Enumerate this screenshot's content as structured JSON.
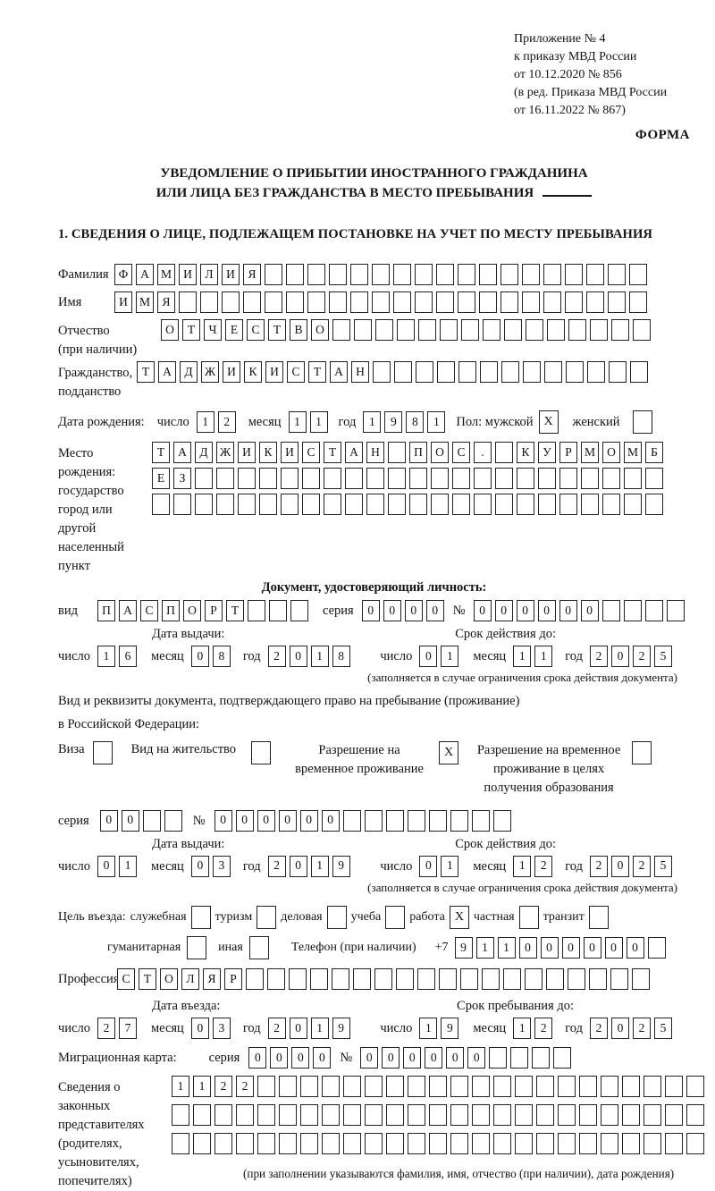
{
  "doc": {
    "annex_lines": [
      "Приложение № 4",
      "к приказу МВД России",
      "от 10.12.2020 № 856",
      "(в ред. Приказа МВД России",
      "от 16.11.2022 № 867)"
    ],
    "forma": "ФОРМА",
    "title1": "УВЕДОМЛЕНИЕ О ПРИБЫТИИ ИНОСТРАННОГО ГРАЖДАНИНА",
    "title2": "ИЛИ ЛИЦА БЕЗ ГРАЖДАНСТВА В МЕСТО ПРЕБЫВАНИЯ",
    "section1": "1. СВЕДЕНИЯ О ЛИЦЕ, ПОДЛЕЖАЩЕМ ПОСТАНОВКЕ НА УЧЕТ ПО МЕСТУ ПРЕБЫВАНИЯ"
  },
  "labels": {
    "day": "число",
    "month": "месяц",
    "year": "год",
    "issue": "Дата выдачи:",
    "valid": "Срок действия до:",
    "valid_note": "(заполняется в случае ограничения срока действия документа)",
    "seriya": "серия",
    "num": "№"
  },
  "surname": {
    "label": "Фамилия",
    "row": {
      "v": "ФАМИЛИЯ",
      "n": 25
    }
  },
  "name": {
    "label": "Имя",
    "row": {
      "v": "ИМЯ",
      "n": 25
    }
  },
  "patronymic": {
    "label1": "Отчество",
    "label2": "(при наличии)",
    "row": {
      "v": "ОТЧЕСТВО",
      "n": 23
    }
  },
  "citizenship": {
    "label1": "Гражданство,",
    "label2": "подданство",
    "row": {
      "v": "ТАДЖИКИСТАН",
      "n": 24
    }
  },
  "birth": {
    "label": "Дата рождения:",
    "day": {
      "v": "12",
      "n": 2
    },
    "month": {
      "v": "11",
      "n": 2
    },
    "year": {
      "v": "1981",
      "n": 4
    },
    "gender_label": "Пол: мужской",
    "male": "X",
    "female_label": "женский",
    "female": ""
  },
  "birthplace": {
    "label1": "Место рождения:",
    "label2": "государство",
    "label3": "город или другой",
    "label4": "населенный пункт",
    "rows": [
      {
        "v": "ТАДЖИКИСТАН ПОС. КУРМОМБ",
        "n": 24
      },
      {
        "v": "ЕЗ",
        "n": 24
      },
      {
        "v": "",
        "n": 24
      }
    ]
  },
  "iddoc": {
    "heading": "Документ, удостоверяющий личность:",
    "vid_label": "вид",
    "vid": {
      "v": "ПАСПОРТ",
      "n": 10
    },
    "seriya": {
      "v": "0000",
      "n": 4
    },
    "num": {
      "v": "000000",
      "n": 10
    },
    "issue": {
      "day": {
        "v": "16",
        "n": 2
      },
      "month": {
        "v": "08",
        "n": 2
      },
      "year": {
        "v": "2018",
        "n": 4
      }
    },
    "valid": {
      "day": {
        "v": "01",
        "n": 2
      },
      "month": {
        "v": "11",
        "n": 2
      },
      "year": {
        "v": "2025",
        "n": 4
      }
    }
  },
  "resdoc": {
    "line1": "Вид и реквизиты документа, подтверждающего право на пребывание (проживание)",
    "line2": "в Российской Федерации:",
    "opt_visa": "Виза",
    "visa": "",
    "opt_vnj": "Вид на жительство",
    "vnj": "",
    "opt_rvp": "Разрешение на временное проживание",
    "rvp": "X",
    "opt_rvpo": "Разрешение на временное проживание в целях получения образования",
    "rvpo": "",
    "seriya": {
      "v": "00",
      "n": 4
    },
    "num": {
      "v": "000000",
      "n": 14
    },
    "issue": {
      "day": {
        "v": "01",
        "n": 2
      },
      "month": {
        "v": "03",
        "n": 2
      },
      "year": {
        "v": "2019",
        "n": 4
      }
    },
    "valid": {
      "day": {
        "v": "01",
        "n": 2
      },
      "month": {
        "v": "12",
        "n": 2
      },
      "year": {
        "v": "2025",
        "n": 4
      }
    }
  },
  "purpose": {
    "label": "Цель въезда:",
    "opt_service": "служебная",
    "service": "",
    "opt_tourism": "туризм",
    "tourism": "",
    "opt_business": "деловая",
    "business": "",
    "opt_study": "учеба",
    "study": "",
    "opt_work": "работа",
    "work": "X",
    "opt_private": "частная",
    "private": "",
    "opt_transit": "транзит",
    "transit": "",
    "opt_humanitarian": "гуманитарная",
    "humanitarian": "",
    "opt_other": "иная",
    "other": "",
    "phone_label": "Телефон (при наличии)",
    "phone_prefix": "+7",
    "phone": {
      "v": "911000000",
      "n": 10
    }
  },
  "profession": {
    "label": "Профессия",
    "row": {
      "v": "СТОЛЯР",
      "n": 25
    }
  },
  "entry": {
    "issue_label": "Дата въезда:",
    "valid_label": "Срок пребывания до:",
    "date": {
      "day": {
        "v": "27",
        "n": 2
      },
      "month": {
        "v": "03",
        "n": 2
      },
      "year": {
        "v": "2019",
        "n": 4
      }
    },
    "until": {
      "day": {
        "v": "19",
        "n": 2
      },
      "month": {
        "v": "12",
        "n": 2
      },
      "year": {
        "v": "2025",
        "n": 4
      }
    }
  },
  "migcard": {
    "label": "Миграционная карта:",
    "seriya": {
      "v": "0000",
      "n": 4
    },
    "num": {
      "v": "000000",
      "n": 10
    }
  },
  "reps": {
    "label_lines": [
      "Сведения о",
      "законных",
      "представителях",
      "(родителях,",
      "усыновителях,",
      "попечителях)"
    ],
    "rows": [
      {
        "v": "1122",
        "n": 25
      },
      {
        "v": "",
        "n": 25
      },
      {
        "v": "",
        "n": 25
      }
    ],
    "note": "(при заполнении указываются фамилия, имя, отчество (при наличии), дата рождения)"
  }
}
